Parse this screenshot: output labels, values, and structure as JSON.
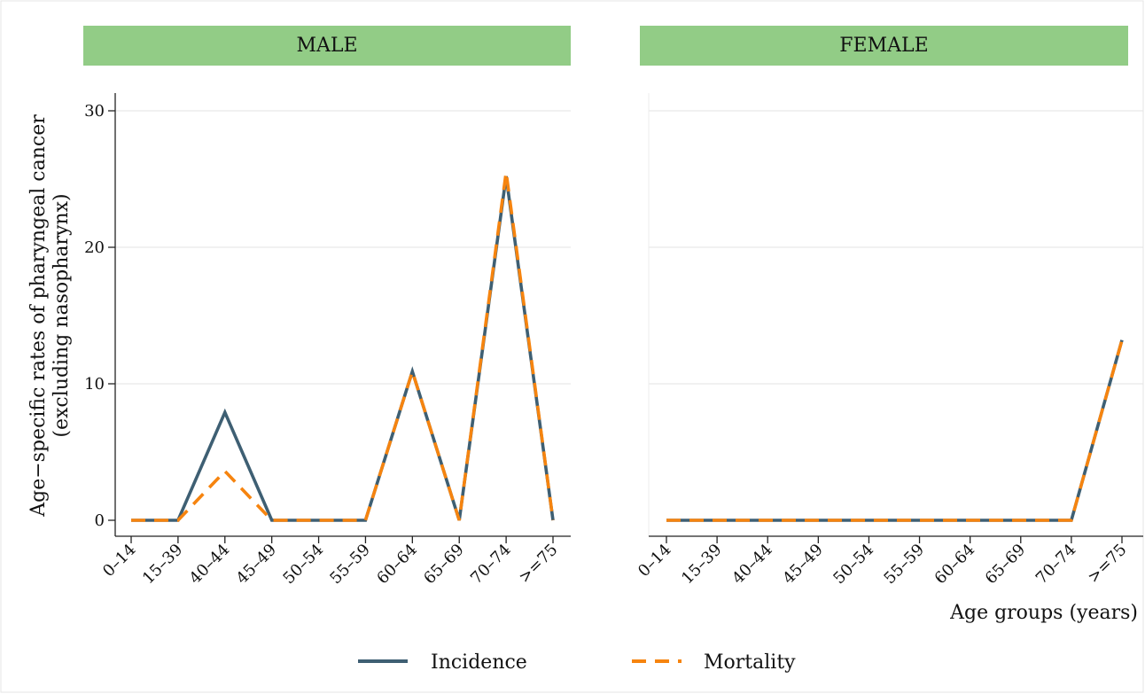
{
  "chart_data": {
    "type": "line",
    "x_ticks": [
      "0–14",
      "15–39",
      "40–44",
      "45–49",
      "50–54",
      "55–59",
      "60–64",
      "65–69",
      "70–74",
      ">=75"
    ],
    "ylim": [
      0,
      30
    ],
    "y_ticks": [
      0,
      10,
      20,
      30
    ],
    "ylabel_line1": "Age−specific rates of pharyngeal  cancer",
    "ylabel_line2": "(excluding nasopharynx)",
    "xlabel": "Age groups (years)",
    "grid": "horizontal",
    "legend_position": "bottom",
    "colors": {
      "incidence": "#3e5f73",
      "mortality": "#f6840f",
      "strip": "#92cc86"
    },
    "panels": [
      {
        "title": "MALE",
        "series": [
          {
            "name": "Incidence",
            "values": [
              0,
              0,
              7.9,
              0,
              0,
              0,
              10.9,
              0,
              25.2,
              0
            ]
          },
          {
            "name": "Mortality",
            "values": [
              0,
              0,
              3.6,
              0,
              0,
              0,
              10.9,
              0,
              25.5,
              0
            ]
          }
        ]
      },
      {
        "title": "FEMALE",
        "series": [
          {
            "name": "Incidence",
            "values": [
              0,
              0,
              0,
              0,
              0,
              0,
              0,
              0,
              0,
              13.2
            ]
          },
          {
            "name": "Mortality",
            "values": [
              0,
              0,
              0,
              0,
              0,
              0,
              0,
              0,
              0,
              13.2
            ]
          }
        ]
      }
    ],
    "legend": [
      {
        "name": "Incidence",
        "style": "solid"
      },
      {
        "name": "Mortality",
        "style": "dashed"
      }
    ]
  }
}
